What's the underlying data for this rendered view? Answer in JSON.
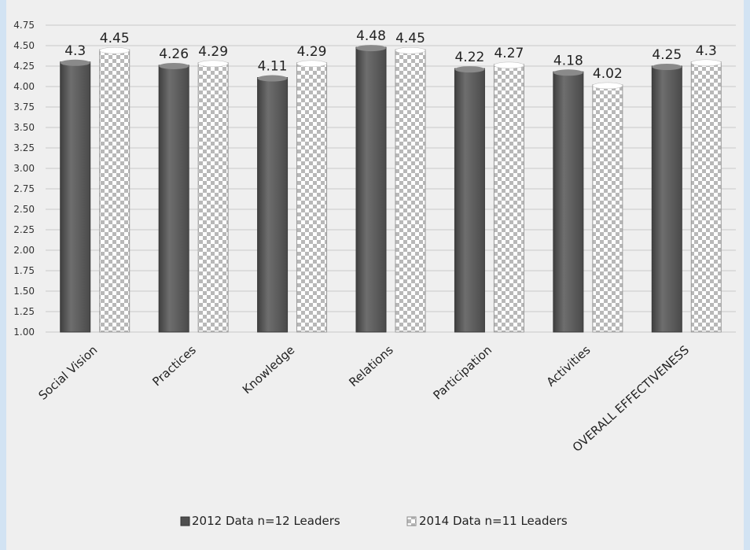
{
  "chart_data": {
    "type": "bar",
    "categories": [
      "Social Vision",
      "Practices",
      "Knowledge",
      "Relations",
      "Participation",
      "Activities",
      "OVERALL EFFECTIVENESS"
    ],
    "series": [
      {
        "name": "2012 Data n=12 Leaders",
        "values": [
          4.3,
          4.26,
          4.11,
          4.48,
          4.22,
          4.18,
          4.25
        ],
        "labels": [
          "4.3",
          "4.26",
          "4.11",
          "4.48",
          "4.22",
          "4.18",
          "4.25"
        ],
        "color": "#5d5d5d",
        "pattern": "solid"
      },
      {
        "name": "2014 Data n=11 Leaders",
        "values": [
          4.45,
          4.29,
          4.29,
          4.45,
          4.27,
          4.02,
          4.3
        ],
        "labels": [
          "4.45",
          "4.29",
          "4.29",
          "4.45",
          "4.27",
          "4.02",
          "4.3"
        ],
        "color": "#ffffff",
        "pattern": "checkered"
      }
    ],
    "ylim": [
      1.0,
      4.75
    ],
    "yticks": [
      "1.00",
      "1.25",
      "1.50",
      "1.75",
      "2.00",
      "2.25",
      "2.50",
      "2.75",
      "3.00",
      "3.25",
      "3.50",
      "3.75",
      "4.00",
      "4.25",
      "4.50",
      "4.75"
    ],
    "grid": true,
    "legend_position": "bottom"
  }
}
